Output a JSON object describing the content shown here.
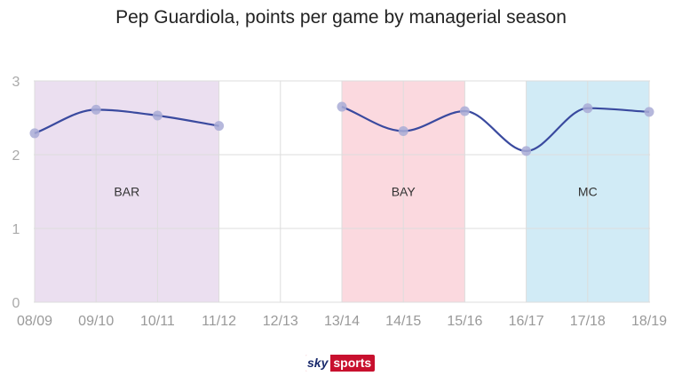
{
  "title": "Pep Guardiola, points per game by managerial season",
  "logo": {
    "part1": "sky",
    "part2": "sports"
  },
  "chart_data": {
    "type": "line",
    "title": "Pep Guardiola, points per game by managerial season",
    "xlabel": "",
    "ylabel": "",
    "categories": [
      "08/09",
      "09/10",
      "10/11",
      "11/12",
      "12/13",
      "13/14",
      "14/15",
      "15/16",
      "16/17",
      "17/18",
      "18/19"
    ],
    "ylim": [
      0,
      3
    ],
    "yticks": [
      0,
      1,
      2,
      3
    ],
    "grid": true,
    "series": [
      {
        "values": [
          2.29,
          2.61,
          2.53,
          2.39,
          null,
          2.65,
          2.32,
          2.59,
          2.05,
          2.63,
          2.58
        ],
        "color": "#3a4a9f"
      }
    ],
    "regions": [
      {
        "label": "BAR",
        "start": "08/09",
        "end": "11/12",
        "color": "#ebdff0"
      },
      {
        "label": "BAY",
        "start": "13/14",
        "end": "15/16",
        "color": "#fbd9df"
      },
      {
        "label": "MC",
        "start": "16/17",
        "end": "18/19",
        "color": "#d1ebf6"
      }
    ]
  }
}
